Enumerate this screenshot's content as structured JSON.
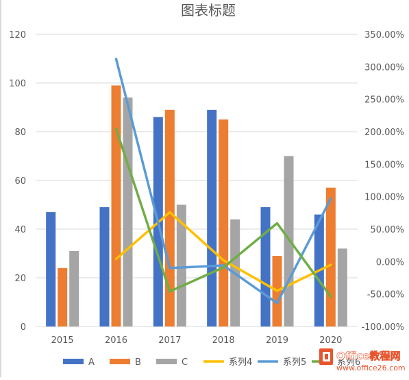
{
  "chart_data": {
    "type": "bar",
    "title": "图表标题",
    "categories": [
      "2015",
      "2016",
      "2017",
      "2018",
      "2019",
      "2020"
    ],
    "series": [
      {
        "name": "A",
        "kind": "bar",
        "axis": "left",
        "color": "#4472c4",
        "values": [
          47,
          49,
          86,
          89,
          49,
          46
        ]
      },
      {
        "name": "B",
        "kind": "bar",
        "axis": "left",
        "color": "#ed7d31",
        "values": [
          24,
          99,
          89,
          85,
          29,
          57
        ]
      },
      {
        "name": "C",
        "kind": "bar",
        "axis": "left",
        "color": "#a5a5a5",
        "values": [
          31,
          94,
          50,
          44,
          70,
          32
        ]
      },
      {
        "name": "系列4",
        "kind": "line",
        "axis": "right",
        "color": "#ffc000",
        "values": [
          null,
          0.04,
          0.76,
          0.02,
          -0.45,
          -0.05
        ]
      },
      {
        "name": "系列5",
        "kind": "line",
        "axis": "right",
        "color": "#5b9bd5",
        "values": [
          null,
          3.12,
          -0.1,
          -0.06,
          -0.64,
          0.97
        ]
      },
      {
        "name": "系列6",
        "kind": "line",
        "axis": "right",
        "color": "#70ad47",
        "values": [
          null,
          2.04,
          -0.46,
          -0.09,
          0.59,
          -0.54
        ]
      }
    ],
    "y_left": {
      "min": 0,
      "max": 120,
      "step": 20,
      "ticks": [
        "0",
        "20",
        "40",
        "60",
        "80",
        "100",
        "120"
      ]
    },
    "y_right": {
      "min": -1.0,
      "max": 3.5,
      "step": 0.5,
      "ticks": [
        "-100.00%",
        "-50.00%",
        "0.00%",
        "50.00%",
        "100.00%",
        "150.00%",
        "200.00%",
        "250.00%",
        "300.00%",
        "350.00%"
      ]
    },
    "grid": true,
    "legend": "bottom"
  },
  "watermark": {
    "brand": "Office教程网",
    "url": "www.office26.com"
  }
}
